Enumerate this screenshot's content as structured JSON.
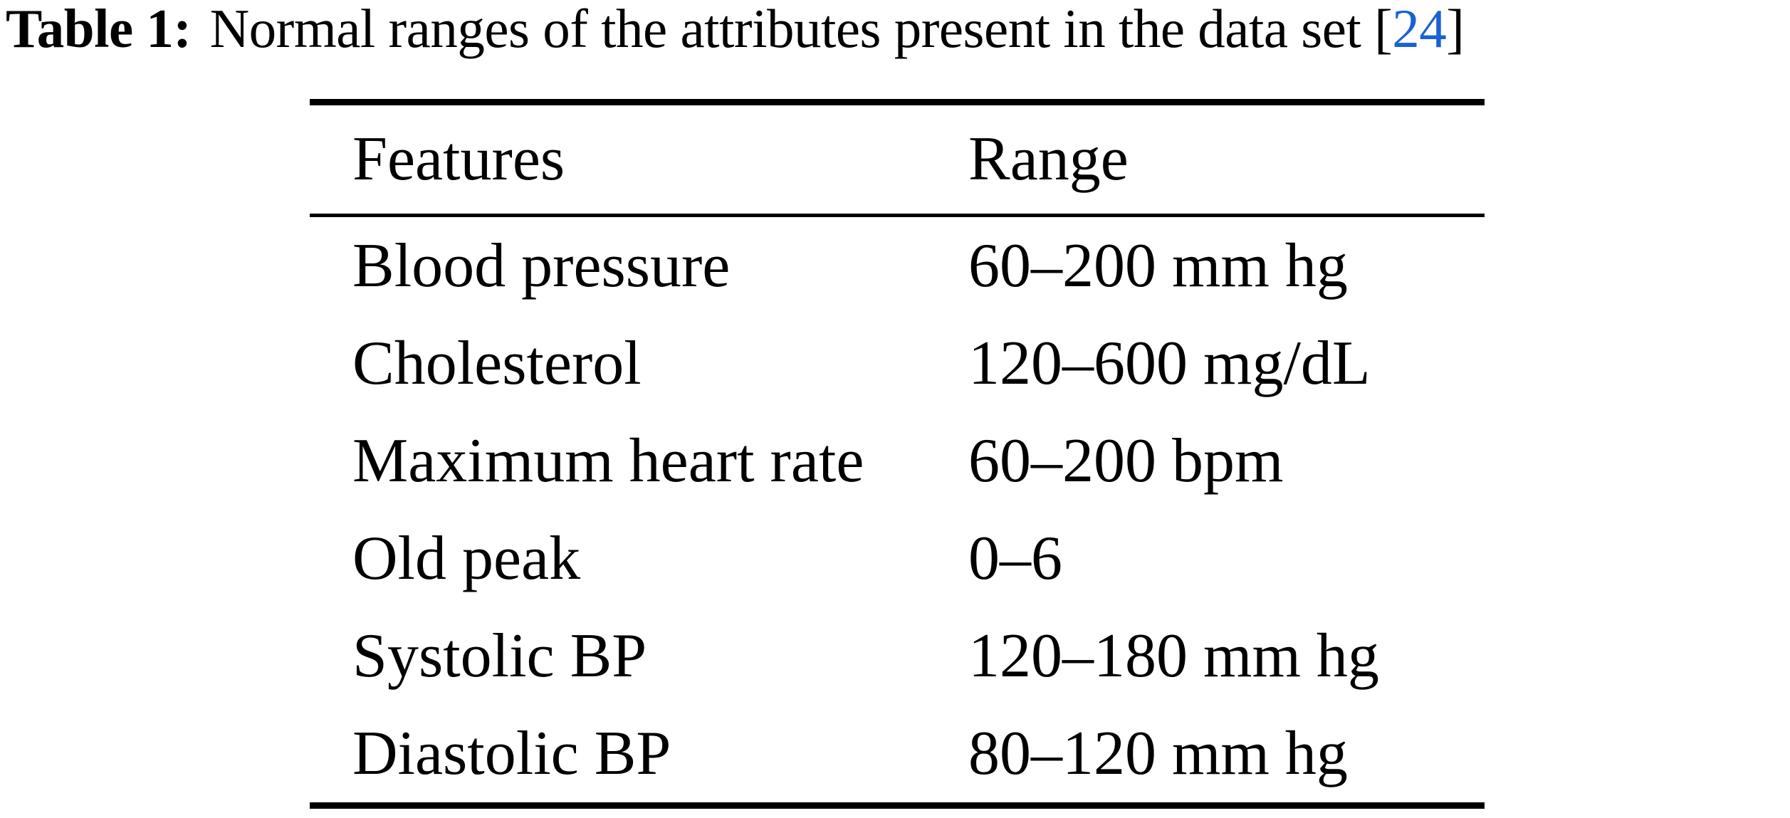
{
  "caption": {
    "label": "Table 1:",
    "text": "Normal ranges of the attributes present in the data set",
    "citation_open": "[",
    "citation_number": "24",
    "citation_close": "]"
  },
  "colors": {
    "citation_blue": "#1a61d4",
    "text": "#000000",
    "background": "#ffffff"
  },
  "table": {
    "headers": {
      "feature": "Features",
      "range": "Range"
    },
    "rows": [
      {
        "feature": "Blood pressure",
        "range": "60–200 mm hg"
      },
      {
        "feature": "Cholesterol",
        "range": "120–600 mg/dL"
      },
      {
        "feature": "Maximum heart rate",
        "range": "60–200 bpm"
      },
      {
        "feature": "Old peak",
        "range": "0–6"
      },
      {
        "feature": "Systolic BP",
        "range": "120–180 mm hg"
      },
      {
        "feature": "Diastolic BP",
        "range": "80–120 mm hg"
      }
    ]
  }
}
